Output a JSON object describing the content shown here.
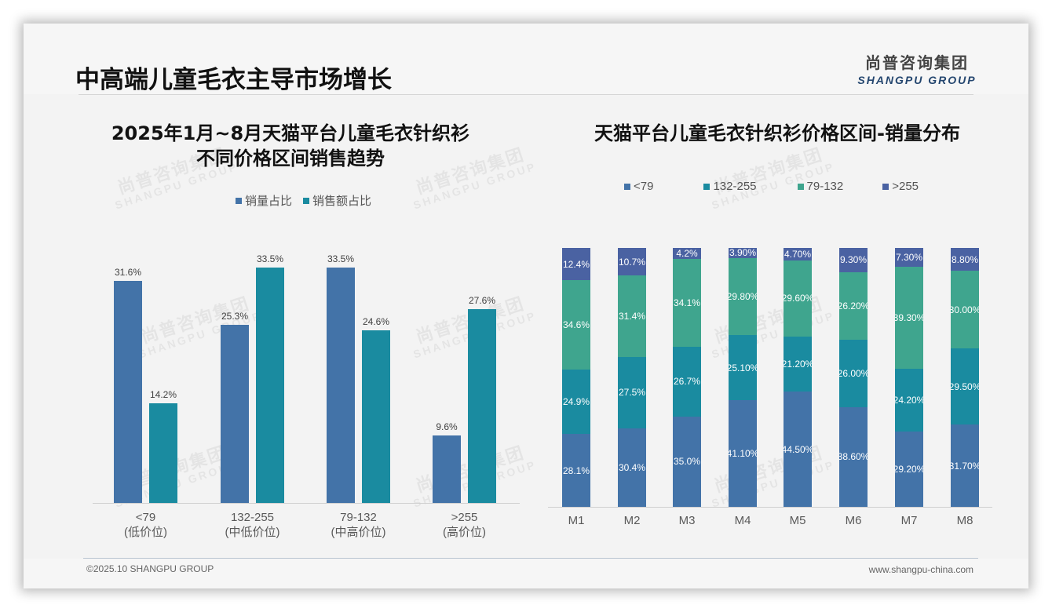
{
  "header": {
    "title": "中高端儿童毛衣主导市场增长",
    "logo_cn": "尚普咨询集团",
    "logo_en": "SHANGPU GROUP"
  },
  "watermark": {
    "cn": "尚普咨询集团",
    "en": "SHANGPU GROUP"
  },
  "footer": {
    "copyright": "©2025.10 SHANGPU GROUP",
    "website": "www.shangpu-china.com"
  },
  "colors": {
    "sales_volume": "#4373a8",
    "sales_amount": "#1a8ba0",
    "lt79": "#4373a8",
    "r132_255": "#1a8ba0",
    "r79_132": "#3fa58e",
    "gt255": "#4a62a2"
  },
  "chart_data": [
    {
      "type": "bar",
      "title": "2025年1月~8月天猫平台儿童毛衣针织衫 不同价格区间销售趋势",
      "title_line1": "2025年1月~8月天猫平台儿童毛衣针织衫",
      "title_line2": "不同价格区间销售趋势",
      "categories": [
        "<79",
        "132-255",
        "79-132",
        ">255"
      ],
      "category_sublabels": [
        "(低价位)",
        "(中低价位)",
        "(中高价位)",
        "(高价位)"
      ],
      "series": [
        {
          "name": "销量占比",
          "values": [
            31.6,
            25.3,
            33.5,
            9.6
          ],
          "labels": [
            "31.6%",
            "25.3%",
            "33.5%",
            "9.6%"
          ]
        },
        {
          "name": "销售额占比",
          "values": [
            14.2,
            33.5,
            24.6,
            27.6
          ],
          "labels": [
            "14.2%",
            "33.5%",
            "24.6%",
            "27.6%"
          ]
        }
      ],
      "legend_position": "top",
      "grid": false,
      "unit": "%"
    },
    {
      "type": "bar",
      "stacked": true,
      "percent_stacked": true,
      "title": "天猫平台儿童毛衣针织衫价格区间-销量分布",
      "categories": [
        "M1",
        "M2",
        "M3",
        "M4",
        "M5",
        "M6",
        "M7",
        "M8"
      ],
      "legend": [
        "<79",
        "132-255",
        "79-132",
        ">255"
      ],
      "series": [
        {
          "name": "<79",
          "values": [
            28.1,
            30.4,
            35.0,
            41.1,
            44.5,
            38.6,
            29.2,
            31.7
          ],
          "labels": [
            "28.1%",
            "30.4%",
            "35.0%",
            "41.10%",
            "44.50%",
            "38.60%",
            "29.20%",
            "31.70%"
          ]
        },
        {
          "name": "132-255",
          "values": [
            24.9,
            27.5,
            26.7,
            25.1,
            21.2,
            26.0,
            24.2,
            29.5
          ],
          "labels": [
            "24.9%",
            "27.5%",
            "26.7%",
            "25.10%",
            "21.20%",
            "26.00%",
            "24.20%",
            "29.50%"
          ]
        },
        {
          "name": "79-132",
          "values": [
            34.6,
            31.4,
            34.1,
            29.8,
            29.6,
            26.2,
            39.3,
            30.0
          ],
          "labels": [
            "34.6%",
            "31.4%",
            "34.1%",
            "29.80%",
            "29.60%",
            "26.20%",
            "39.30%",
            "30.00%"
          ]
        },
        {
          "name": ">255",
          "values": [
            12.4,
            10.7,
            4.2,
            3.9,
            4.7,
            9.3,
            7.3,
            8.8
          ],
          "labels": [
            "12.4%",
            "10.7%",
            "4.2%",
            "3.90%",
            "4.70%",
            "9.30%",
            "7.30%",
            "8.80%"
          ]
        }
      ],
      "legend_position": "top",
      "grid": false,
      "ylim": [
        0,
        100
      ],
      "unit": "%"
    }
  ]
}
